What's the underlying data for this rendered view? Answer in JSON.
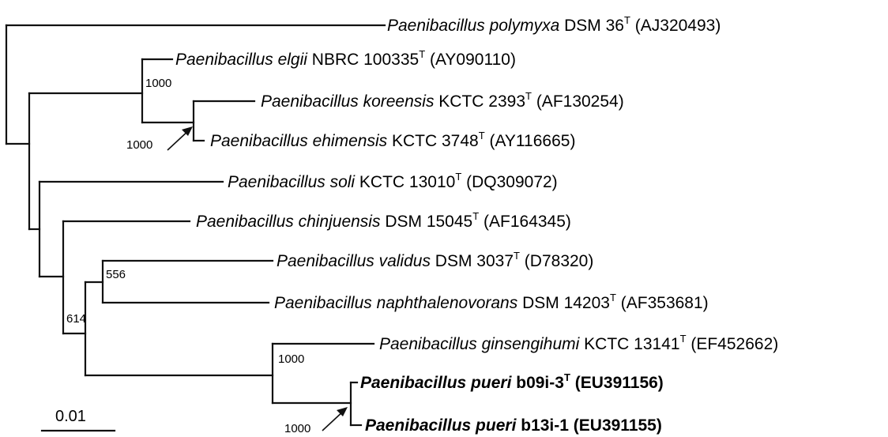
{
  "taxa": [
    {
      "genus_species": "Paenibacillus polymyxa",
      "strain": "DSM 36",
      "type_strain": true,
      "accession": "(AJ320493)",
      "bold": false
    },
    {
      "genus_species": "Paenibacillus elgii",
      "strain": "NBRC 100335",
      "type_strain": true,
      "accession": "(AY090110)",
      "bold": false
    },
    {
      "genus_species": "Paenibacillus koreensis",
      "strain": "KCTC 2393",
      "type_strain": true,
      "accession": "(AF130254)",
      "bold": false
    },
    {
      "genus_species": "Paenibacillus ehimensis",
      "strain": "KCTC 3748",
      "type_strain": true,
      "accession": "(AY116665)",
      "bold": false
    },
    {
      "genus_species": "Paenibacillus soli",
      "strain": "KCTC 13010",
      "type_strain": true,
      "accession": "(DQ309072)",
      "bold": false
    },
    {
      "genus_species": "Paenibacillus chinjuensis",
      "strain": "DSM 15045",
      "type_strain": true,
      "accession": "(AF164345)",
      "bold": false
    },
    {
      "genus_species": "Paenibacillus validus",
      "strain": "DSM 3037",
      "type_strain": true,
      "accession": "(D78320)",
      "bold": false
    },
    {
      "genus_species": "Paenibacillus naphthalenovorans",
      "strain": "DSM 14203",
      "type_strain": true,
      "accession": "(AF353681)",
      "bold": false
    },
    {
      "genus_species": "Paenibacillus ginsengihumi",
      "strain": "KCTC 13141",
      "type_strain": true,
      "accession": "(EF452662)",
      "bold": false
    },
    {
      "genus_species": "Paenibacillus pueri",
      "strain": "b09i-3",
      "type_strain": true,
      "accession": "(EU391156)",
      "bold": true
    },
    {
      "genus_species": "Paenibacillus pueri",
      "strain": "b13i-1",
      "type_strain": false,
      "accession": "(EU391155)",
      "bold": true
    }
  ],
  "type_mark": "T",
  "bootstrap": {
    "elgii_clade": "1000",
    "koreensis_ehimensis": "1000",
    "validus_naphthalenovorans": "556",
    "validus_ginsengihumi_group": "614",
    "ginsengihumi_pueri": "1000",
    "pueri_pair": "1000"
  },
  "scale_bar": {
    "label": "0.01",
    "value": 0.01
  }
}
